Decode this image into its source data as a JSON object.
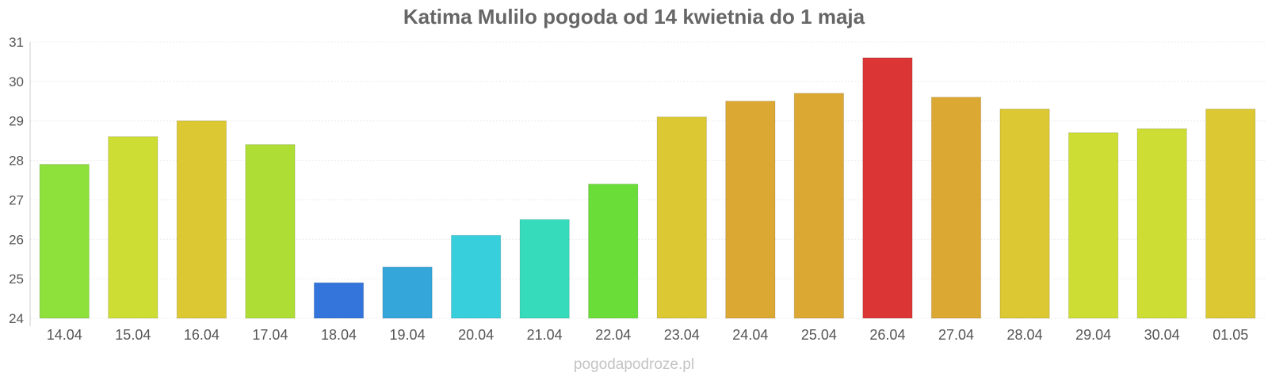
{
  "watermark": "pogodapodroze.pl",
  "chart_data": {
    "type": "bar",
    "title": "Katima Mulilo pogoda od 14 kwietnia do 1 maja",
    "xlabel": "",
    "ylabel": "",
    "ylim": [
      24,
      31
    ],
    "yticks": [
      24,
      25,
      26,
      27,
      28,
      29,
      30,
      31
    ],
    "grid": true,
    "legend": "none",
    "categories": [
      "14.04",
      "15.04",
      "16.04",
      "17.04",
      "18.04",
      "19.04",
      "20.04",
      "21.04",
      "22.04",
      "23.04",
      "24.04",
      "25.04",
      "26.04",
      "27.04",
      "28.04",
      "29.04",
      "30.04",
      "01.05"
    ],
    "values": [
      27.9,
      28.6,
      29.0,
      28.4,
      24.9,
      25.3,
      26.1,
      26.5,
      27.4,
      29.1,
      29.5,
      29.7,
      30.6,
      29.6,
      29.3,
      28.7,
      28.8,
      29.3
    ],
    "colors": [
      "#8ee03b",
      "#cddd33",
      "#dbc833",
      "#aede36",
      "#3475db",
      "#35a6da",
      "#37cfdb",
      "#35dbbb",
      "#6add39",
      "#dbc833",
      "#dba833",
      "#dba833",
      "#db3535",
      "#dba833",
      "#dbc833",
      "#cddd33",
      "#cddd33",
      "#dbc833"
    ]
  }
}
